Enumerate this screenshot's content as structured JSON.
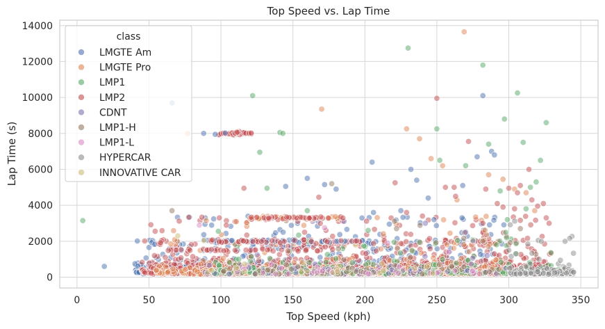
{
  "chart_data": {
    "type": "scatter",
    "title": "Top Speed vs. Lap Time",
    "xlabel": "Top Speed (kph)",
    "ylabel": "Lap Time (s)",
    "xlim": [
      -12,
      362
    ],
    "ylim": [
      -600,
      14300
    ],
    "xticks": [
      0,
      50,
      100,
      150,
      200,
      250,
      300,
      350
    ],
    "yticks": [
      0,
      2000,
      4000,
      6000,
      8000,
      10000,
      12000,
      14000
    ],
    "grid": true,
    "legend": {
      "title": "class",
      "placement": "top-left"
    },
    "series": [
      {
        "name": "LMGTE Am",
        "color": "#4c72b0",
        "points": [
          [
            19,
            600
          ],
          [
            66,
            9700
          ],
          [
            88,
            8000
          ],
          [
            96,
            7950
          ],
          [
            103,
            8020
          ],
          [
            145,
            5050
          ],
          [
            160,
            5500
          ],
          [
            205,
            6400
          ],
          [
            232,
            6000
          ],
          [
            236,
            5400
          ],
          [
            244,
            4400
          ],
          [
            268,
            5100
          ],
          [
            278,
            6700
          ],
          [
            282,
            10100
          ],
          [
            288,
            7000
          ],
          [
            290,
            6800
          ],
          [
            172,
            5150
          ],
          [
            180,
            4900
          ],
          [
            206,
            3600
          ],
          [
            248,
            3200
          ],
          [
            225,
            3700
          ]
        ]
      },
      {
        "name": "LMGTE Pro",
        "color": "#dd8452",
        "points": [
          [
            77,
            8000
          ],
          [
            170,
            9350
          ],
          [
            229,
            8250
          ],
          [
            238,
            7700
          ],
          [
            246,
            6600
          ],
          [
            254,
            6200
          ],
          [
            264,
            4300
          ],
          [
            269,
            13650
          ],
          [
            286,
            5700
          ],
          [
            296,
            5450
          ],
          [
            304,
            4900
          ],
          [
            312,
            4700
          ],
          [
            318,
            3700
          ]
        ]
      },
      {
        "name": "LMP1",
        "color": "#55a868",
        "points": [
          [
            4,
            3150
          ],
          [
            122,
            10100
          ],
          [
            127,
            6950
          ],
          [
            132,
            4950
          ],
          [
            141,
            8050
          ],
          [
            143,
            8000
          ],
          [
            160,
            3700
          ],
          [
            230,
            12750
          ],
          [
            250,
            8250
          ],
          [
            252,
            6500
          ],
          [
            270,
            6200
          ],
          [
            282,
            11800
          ],
          [
            286,
            7400
          ],
          [
            294,
            4800
          ],
          [
            297,
            8800
          ],
          [
            306,
            10250
          ],
          [
            310,
            7500
          ],
          [
            315,
            5000
          ],
          [
            319,
            5300
          ],
          [
            322,
            6500
          ],
          [
            326,
            8600
          ],
          [
            299,
            3200
          ],
          [
            312,
            3800
          ]
        ]
      },
      {
        "name": "LMP2",
        "color": "#c44e52",
        "points": [
          [
            116,
            4950
          ],
          [
            168,
            4450
          ],
          [
            221,
            5250
          ],
          [
            229,
            3600
          ],
          [
            240,
            3400
          ],
          [
            250,
            9950
          ],
          [
            256,
            5000
          ],
          [
            262,
            5000
          ],
          [
            263,
            4500
          ],
          [
            272,
            7550
          ],
          [
            284,
            4900
          ],
          [
            292,
            4100
          ],
          [
            300,
            4950
          ],
          [
            304,
            3800
          ],
          [
            306,
            4700
          ],
          [
            308,
            5100
          ],
          [
            314,
            6000
          ],
          [
            316,
            4300
          ],
          [
            320,
            3950
          ],
          [
            324,
            4100
          ],
          [
            326,
            3300
          ],
          [
            328,
            3000
          ],
          [
            296,
            3900
          ],
          [
            282,
            3000
          ]
        ]
      },
      {
        "name": "CDNT",
        "color": "#8172b3",
        "points": [
          [
            242,
            3000
          ],
          [
            270,
            2500
          ],
          [
            285,
            1200
          ]
        ]
      },
      {
        "name": "LMP1-H",
        "color": "#937860",
        "points": [
          [
            66,
            3700
          ],
          [
            177,
            5200
          ],
          [
            222,
            2700
          ],
          [
            282,
            2000
          ],
          [
            308,
            2700
          ]
        ]
      },
      {
        "name": "LMP1-L",
        "color": "#da8bc3",
        "points": [
          [
            85,
            2900
          ],
          [
            172,
            2750
          ]
        ]
      },
      {
        "name": "HYPERCAR",
        "color": "#8c8c8c",
        "points": [
          [
            300,
            1500
          ],
          [
            312,
            600
          ],
          [
            320,
            300
          ],
          [
            332,
            250
          ],
          [
            340,
            220
          ],
          [
            345,
            280
          ]
        ]
      },
      {
        "name": "INNOVATIVE CAR",
        "color": "#ccb974",
        "points": [
          [
            70,
            2300
          ]
        ]
      }
    ]
  }
}
